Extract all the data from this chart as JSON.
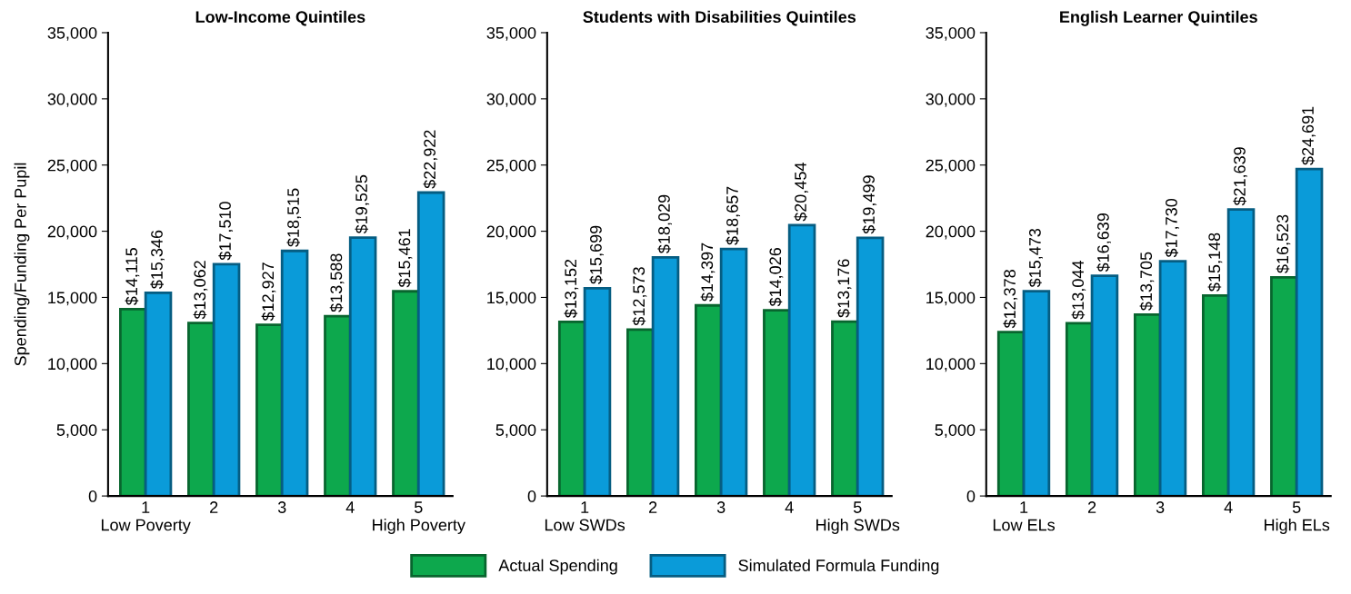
{
  "chart_data": [
    {
      "type": "bar",
      "title": "Low-Income Quintiles",
      "ylabel": "Spending/Funding Per Pupil",
      "categories": [
        "1\nLow Poverty",
        "2",
        "3",
        "4",
        "5\nHigh Poverty"
      ],
      "series": [
        {
          "name": "Actual Spending",
          "color": "#0da84d",
          "values": [
            14115,
            13062,
            12927,
            13588,
            15461
          ],
          "value_labels": [
            "$14,115",
            "$13,062",
            "$12,927",
            "$13,588",
            "$15,461"
          ]
        },
        {
          "name": "Simulated Formula Funding",
          "color": "#0a9bd9",
          "values": [
            15346,
            17510,
            18515,
            19525,
            22922
          ],
          "value_labels": [
            "$15,346",
            "$17,510",
            "$18,515",
            "$19,525",
            "$22,922"
          ]
        }
      ],
      "ylim": [
        0,
        35000
      ],
      "yticks": [
        0,
        {
          "value": 5000,
          "label": "5,000"
        },
        {
          "value": 10000,
          "label": "10,000"
        },
        {
          "value": 15000,
          "label": "15,000"
        },
        {
          "value": 20000,
          "label": "20,000"
        },
        {
          "value": 25000,
          "label": "25,000"
        },
        {
          "value": 30000,
          "label": "30,000"
        },
        {
          "value": 35000,
          "label": "35,000"
        }
      ],
      "grid": false,
      "legend": "bottom"
    },
    {
      "type": "bar",
      "title": "Students with Disabilities Quintiles",
      "categories": [
        "1\nLow SWDs",
        "2",
        "3",
        "4",
        "5\nHigh SWDs"
      ],
      "series": [
        {
          "name": "Actual Spending",
          "color": "#0da84d",
          "values": [
            13152,
            12573,
            14397,
            14026,
            13176
          ],
          "value_labels": [
            "$13,152",
            "$12,573",
            "$14,397",
            "$14,026",
            "$13,176"
          ]
        },
        {
          "name": "Simulated Formula Funding",
          "color": "#0a9bd9",
          "values": [
            15699,
            18029,
            18657,
            20454,
            19499
          ],
          "value_labels": [
            "$15,699",
            "$18,029",
            "$18,657",
            "$20,454",
            "$19,499"
          ]
        }
      ],
      "ylim": [
        0,
        35000
      ],
      "yticks": [
        0,
        {
          "value": 5000,
          "label": "5,000"
        },
        {
          "value": 10000,
          "label": "10,000"
        },
        {
          "value": 15000,
          "label": "15,000"
        },
        {
          "value": 20000,
          "label": "20,000"
        },
        {
          "value": 25000,
          "label": "25,000"
        },
        {
          "value": 30000,
          "label": "30,000"
        },
        {
          "value": 35000,
          "label": "35,000"
        }
      ],
      "grid": false,
      "legend": "bottom"
    },
    {
      "type": "bar",
      "title": "English Learner Quintiles",
      "categories": [
        "1\nLow ELs",
        "2",
        "3",
        "4",
        "5\nHigh ELs"
      ],
      "series": [
        {
          "name": "Actual Spending",
          "color": "#0da84d",
          "values": [
            12378,
            13044,
            13705,
            15148,
            16523
          ],
          "value_labels": [
            "$12,378",
            "$13,044",
            "$13,705",
            "$15,148",
            "$16,523"
          ]
        },
        {
          "name": "Simulated Formula Funding",
          "color": "#0a9bd9",
          "values": [
            15473,
            16639,
            17730,
            21639,
            24691
          ],
          "value_labels": [
            "$15,473",
            "$16,639",
            "$17,730",
            "$21,639",
            "$24,691"
          ]
        }
      ],
      "ylim": [
        0,
        35000
      ],
      "yticks": [
        0,
        {
          "value": 5000,
          "label": "5,000"
        },
        {
          "value": 10000,
          "label": "10,000"
        },
        {
          "value": 15000,
          "label": "15,000"
        },
        {
          "value": 20000,
          "label": "20,000"
        },
        {
          "value": 25000,
          "label": "25,000"
        },
        {
          "value": 30000,
          "label": "30,000"
        },
        {
          "value": 35000,
          "label": "35,000"
        }
      ],
      "grid": false,
      "legend": "bottom"
    }
  ]
}
